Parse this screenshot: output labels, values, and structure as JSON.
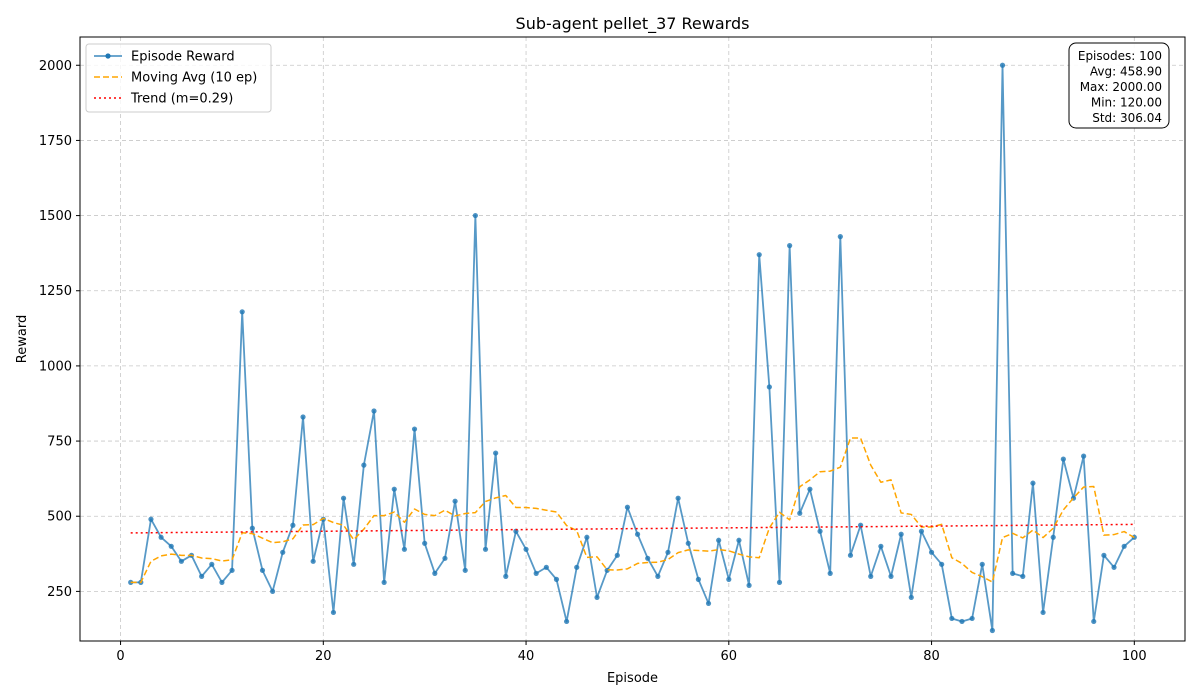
{
  "chart_data": {
    "type": "line",
    "title": "Sub-agent pellet_37 Rewards",
    "xlabel": "Episode",
    "ylabel": "Reward",
    "xlim": [
      -4,
      105
    ],
    "ylim": [
      85,
      2094
    ],
    "xticks": [
      0,
      20,
      40,
      60,
      80,
      100
    ],
    "yticks": [
      250,
      500,
      750,
      1000,
      1250,
      1500,
      1750,
      2000
    ],
    "grid": true,
    "legend_position": "top-left",
    "x": [
      1,
      2,
      3,
      4,
      5,
      6,
      7,
      8,
      9,
      10,
      11,
      12,
      13,
      14,
      15,
      16,
      17,
      18,
      19,
      20,
      21,
      22,
      23,
      24,
      25,
      26,
      27,
      28,
      29,
      30,
      31,
      32,
      33,
      34,
      35,
      36,
      37,
      38,
      39,
      40,
      41,
      42,
      43,
      44,
      45,
      46,
      47,
      48,
      49,
      50,
      51,
      52,
      53,
      54,
      55,
      56,
      57,
      58,
      59,
      60,
      61,
      62,
      63,
      64,
      65,
      66,
      67,
      68,
      69,
      70,
      71,
      72,
      73,
      74,
      75,
      76,
      77,
      78,
      79,
      80,
      81,
      82,
      83,
      84,
      85,
      86,
      87,
      88,
      89,
      90,
      91,
      92,
      93,
      94,
      95,
      96,
      97,
      98,
      99,
      100
    ],
    "series": [
      {
        "name": "Episode Reward",
        "color": "#1f77b4",
        "style": "solid-markers",
        "values": [
          280,
          280,
          490,
          430,
          400,
          350,
          370,
          300,
          340,
          280,
          320,
          1180,
          460,
          320,
          250,
          380,
          470,
          830,
          350,
          490,
          180,
          560,
          340,
          670,
          850,
          280,
          590,
          390,
          790,
          410,
          310,
          360,
          550,
          320,
          1500,
          390,
          710,
          300,
          450,
          390,
          310,
          330,
          290,
          150,
          330,
          430,
          230,
          320,
          370,
          530,
          440,
          360,
          300,
          380,
          560,
          410,
          290,
          210,
          420,
          290,
          420,
          270,
          1370,
          930,
          280,
          1400,
          510,
          590,
          450,
          310,
          1430,
          370,
          470,
          300,
          400,
          300,
          440,
          230,
          450,
          380,
          340,
          160,
          150,
          160,
          340,
          120,
          2000,
          310,
          300,
          610,
          180,
          430,
          690,
          560,
          700,
          150,
          370,
          330,
          400,
          430
        ]
      },
      {
        "name": "Moving Avg (10 ep)",
        "color": "#ffa500",
        "style": "dashed",
        "values": [
          280,
          280,
          350,
          368,
          374,
          370,
          370,
          361,
          359,
          351,
          355,
          445,
          442,
          427,
          412,
          415,
          425,
          471,
          472,
          493,
          479,
          470,
          422,
          457,
          502,
          502,
          514,
          480,
          524,
          506,
          502,
          520,
          501,
          509,
          512,
          549,
          561,
          569,
          529,
          529,
          526,
          520,
          514,
          469,
          452,
          363,
          365,
          322,
          321,
          325,
          343,
          346,
          347,
          356,
          379,
          388,
          386,
          384,
          389,
          385,
          374,
          365,
          362,
          461,
          513,
          488,
          598,
          621,
          648,
          650,
          663,
          760,
          760,
          670,
          613,
          621,
          511,
          506,
          464,
          464,
          473,
          362,
          343,
          313,
          299,
          281,
          429,
          443,
          428,
          454,
          429,
          460,
          521,
          561,
          597,
          599,
          437,
          439,
          449,
          429
        ]
      },
      {
        "name": "Trend (m=0.29)",
        "color": "#ff0000",
        "style": "dotted",
        "values": [
          444.6,
          444.8,
          445.1,
          445.4,
          445.7,
          446.0,
          446.3,
          446.6,
          446.8,
          447.1,
          447.4,
          447.7,
          448.0,
          448.3,
          448.6,
          448.8,
          449.1,
          449.4,
          449.7,
          450.0,
          450.3,
          450.6,
          450.8,
          451.1,
          451.4,
          451.7,
          452.0,
          452.3,
          452.6,
          452.8,
          453.1,
          453.4,
          453.7,
          454.0,
          454.3,
          454.6,
          454.8,
          455.1,
          455.4,
          455.7,
          456.0,
          456.3,
          456.6,
          456.8,
          457.1,
          457.4,
          457.7,
          458.0,
          458.3,
          458.6,
          458.8,
          459.1,
          459.4,
          459.7,
          460.0,
          460.3,
          460.6,
          460.8,
          461.1,
          461.4,
          461.7,
          462.0,
          462.3,
          462.6,
          462.8,
          463.1,
          463.4,
          463.7,
          464.0,
          464.3,
          464.6,
          464.8,
          465.1,
          465.4,
          465.7,
          466.0,
          466.3,
          466.6,
          466.8,
          467.1,
          467.4,
          467.7,
          468.0,
          468.3,
          468.6,
          468.8,
          469.1,
          469.4,
          469.7,
          470.0,
          470.3,
          470.6,
          470.8,
          471.1,
          471.4,
          471.7,
          472.0,
          472.3,
          472.6,
          472.8
        ]
      }
    ],
    "stats_box": {
      "position": "top-right",
      "lines": [
        "Episodes: 100",
        "Avg: 458.90",
        "Max: 2000.00",
        "Min: 120.00",
        "Std: 306.04"
      ]
    }
  }
}
